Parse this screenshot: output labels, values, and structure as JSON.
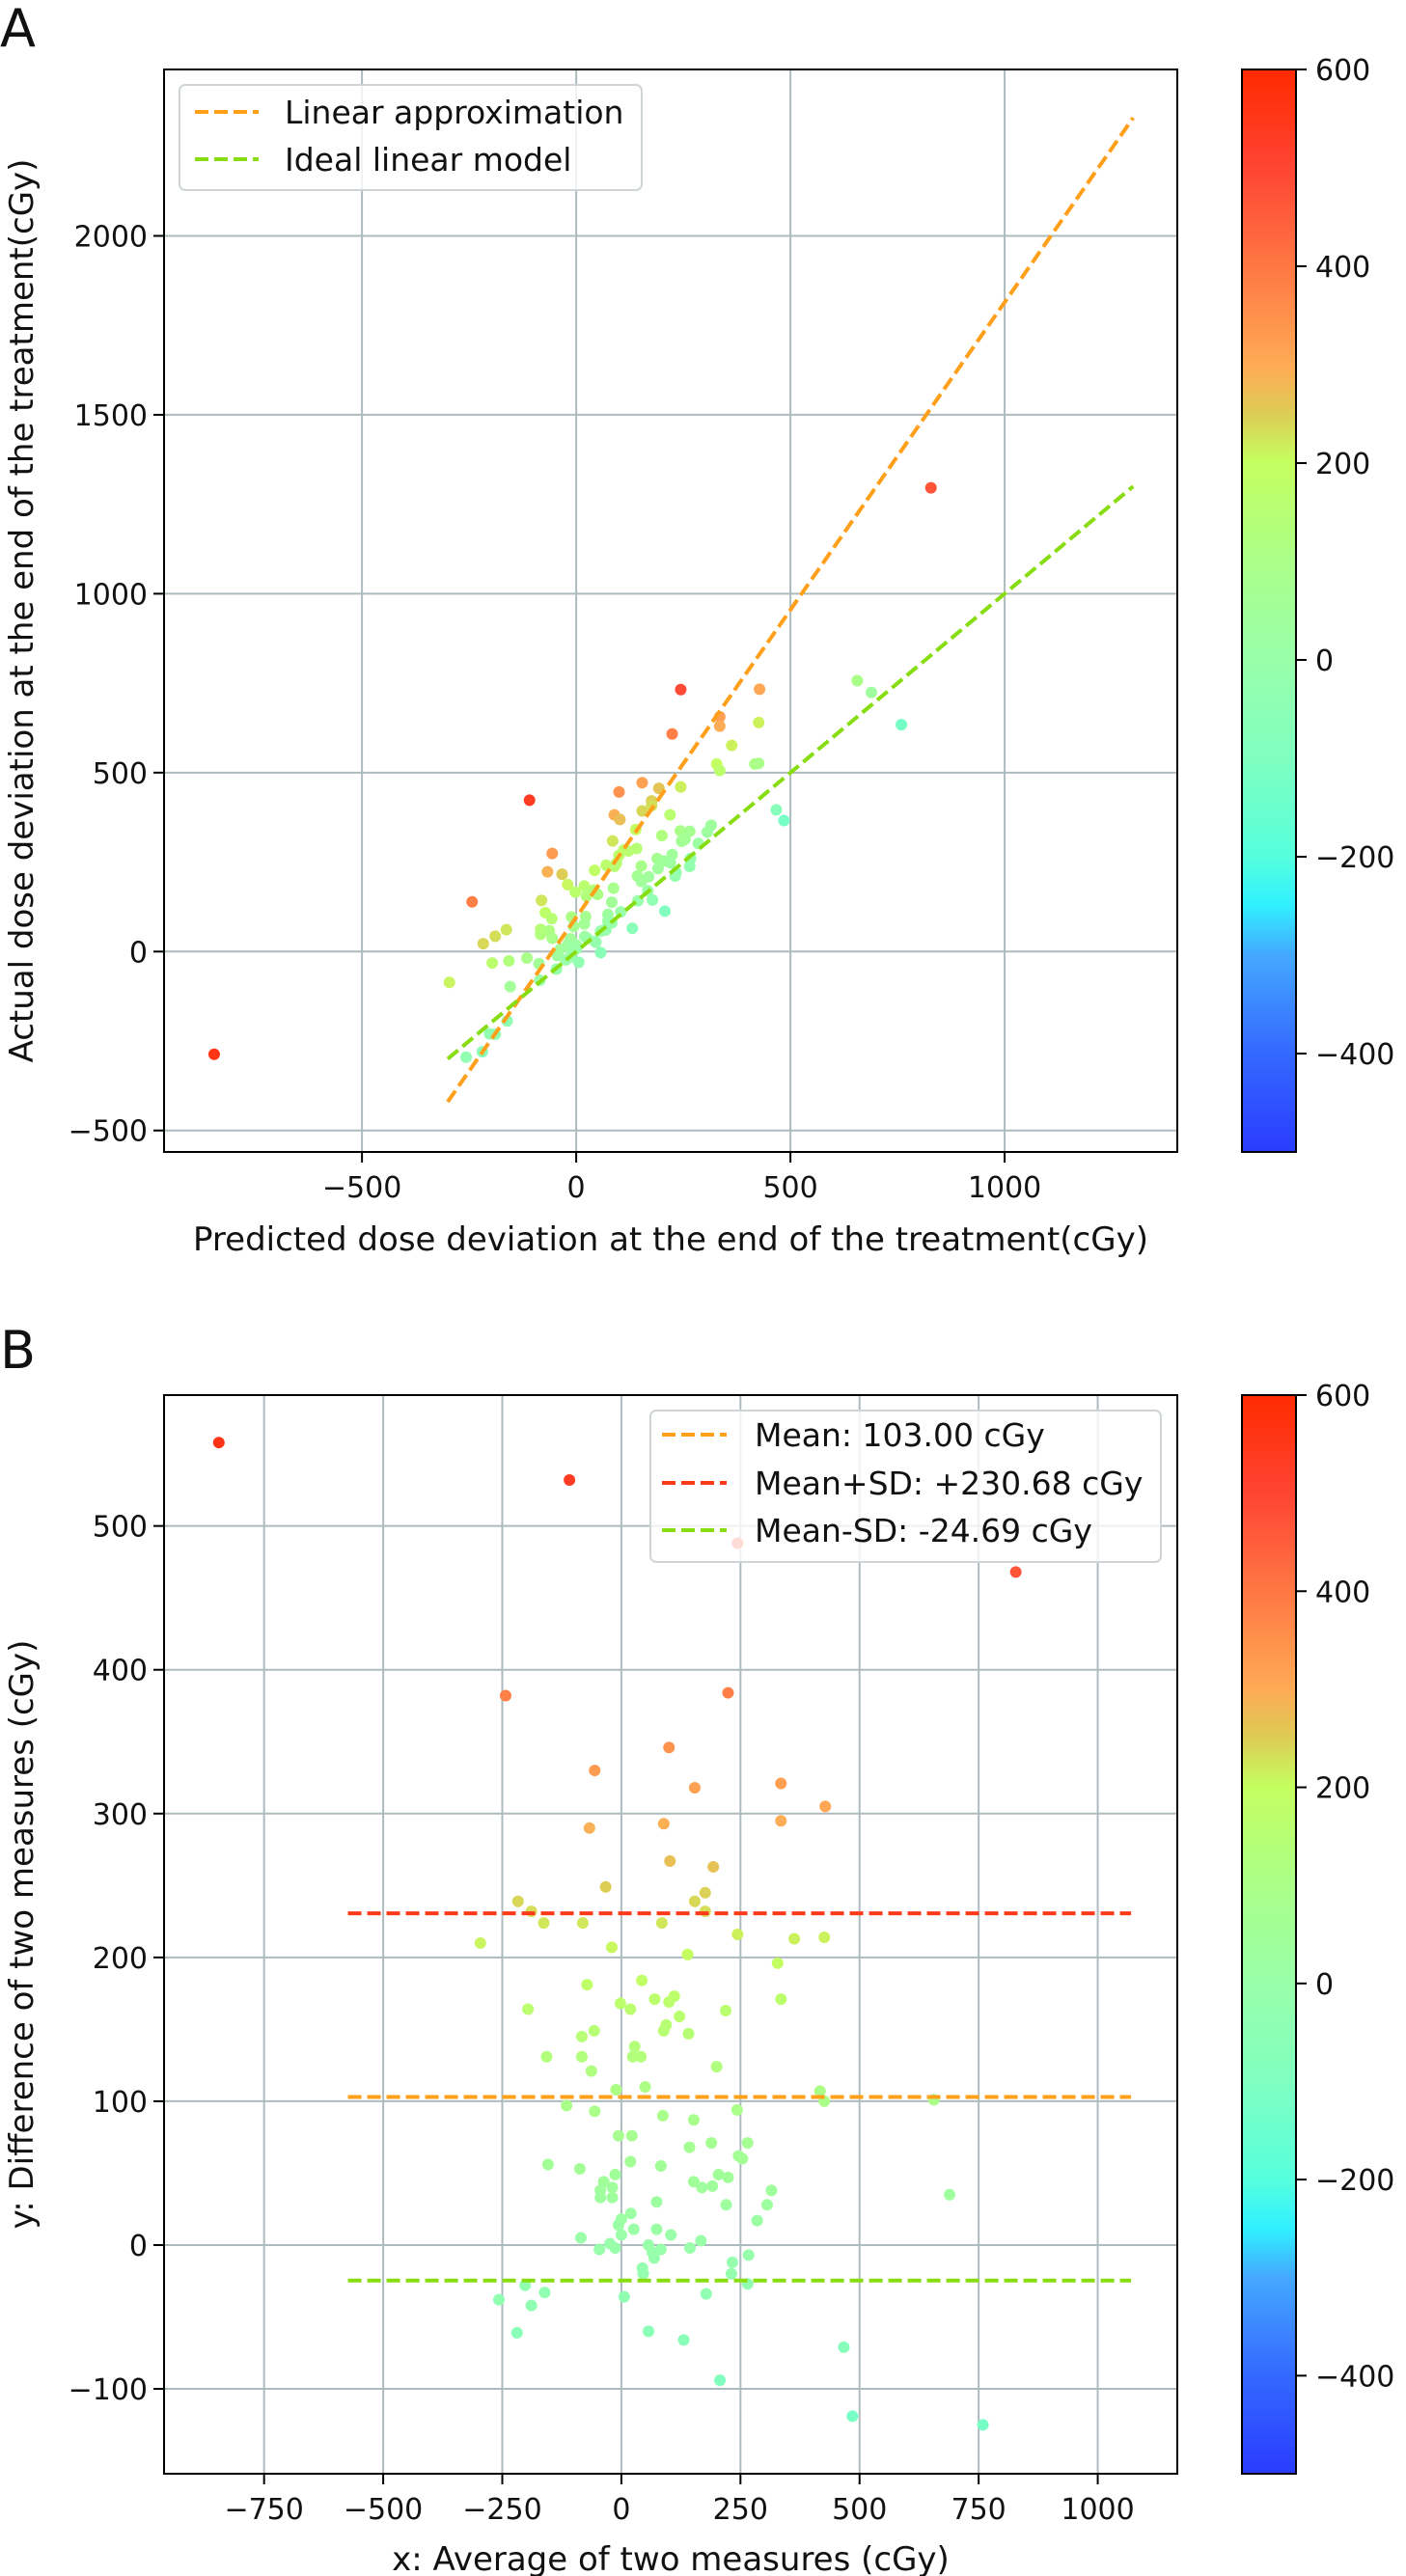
{
  "colorbar": {
    "min": -500,
    "max": 600,
    "ticks": [
      -400,
      -200,
      0,
      200,
      400,
      600
    ],
    "colors": [
      [
        -500,
        "#2a3cff"
      ],
      [
        -400,
        "#3468ff"
      ],
      [
        -300,
        "#45a8ff"
      ],
      [
        -250,
        "#30f0ff"
      ],
      [
        -200,
        "#55ffdd"
      ],
      [
        -100,
        "#80ffc0"
      ],
      [
        0,
        "#99ffaa"
      ],
      [
        100,
        "#aaff88"
      ],
      [
        200,
        "#c4ff60"
      ],
      [
        250,
        "#ddcc55"
      ],
      [
        300,
        "#ffaa55"
      ],
      [
        400,
        "#ff7744"
      ],
      [
        500,
        "#ff4433"
      ],
      [
        600,
        "#ff2a00"
      ]
    ]
  },
  "chart_data": [
    {
      "panel": "A",
      "type": "scatter",
      "xlabel": "Predicted dose deviation at the end of the treatment(cGy)",
      "ylabel": "Actual dose deviation at the end of the treatment(cGy)",
      "xlim": [
        -962,
        1403
      ],
      "ylim": [
        -560,
        2465
      ],
      "xticks": [
        -500,
        0,
        500,
        1000
      ],
      "yticks": [
        -500,
        0,
        500,
        1000,
        1500,
        2000
      ],
      "grid": true,
      "legend_position": "top-left",
      "lines": [
        {
          "name": "Linear approximation",
          "color": "#ff9f1a",
          "x": [
            -300,
            1300
          ],
          "y": [
            -420,
            2330
          ]
        },
        {
          "name": "Ideal linear model",
          "color": "#88dd11",
          "x": [
            -300,
            1300
          ],
          "y": [
            -300,
            1300
          ]
        }
      ],
      "points": [
        [
          -845,
          -287
        ],
        [
          -109,
          423
        ],
        [
          244,
          732
        ],
        [
          828,
          1296
        ],
        [
          -243,
          139
        ],
        [
          224,
          608
        ],
        [
          100,
          446
        ],
        [
          -56,
          274
        ],
        [
          154,
          472
        ],
        [
          335,
          656
        ],
        [
          428,
          733
        ],
        [
          -67,
          223
        ],
        [
          89,
          382
        ],
        [
          335,
          630
        ],
        [
          102,
          369
        ],
        [
          193,
          456
        ],
        [
          -33,
          216
        ],
        [
          176,
          421
        ],
        [
          -217,
          22
        ],
        [
          154,
          393
        ],
        [
          -189,
          43
        ],
        [
          176,
          408
        ],
        [
          -163,
          61
        ],
        [
          -81,
          143
        ],
        [
          85,
          309
        ],
        [
          -296,
          -86
        ],
        [
          244,
          460
        ],
        [
          363,
          576
        ],
        [
          426,
          640
        ],
        [
          -20,
          187
        ],
        [
          139,
          341
        ],
        [
          328,
          524
        ],
        [
          43,
          227
        ],
        [
          -72,
          109
        ],
        [
          111,
          284
        ],
        [
          -196,
          -32
        ],
        [
          -2,
          166
        ],
        [
          70,
          241
        ],
        [
          100,
          269
        ],
        [
          19,
          183
        ],
        [
          219,
          382
        ],
        [
          335,
          506
        ],
        [
          122,
          281
        ],
        [
          94,
          247
        ],
        [
          -57,
          92
        ],
        [
          89,
          238
        ],
        [
          -83,
          62
        ],
        [
          141,
          288
        ],
        [
          28,
          166
        ],
        [
          -157,
          -26
        ],
        [
          -83,
          48
        ],
        [
          41,
          172
        ],
        [
          24,
          155
        ],
        [
          200,
          324
        ],
        [
          -63,
          58
        ],
        [
          -11,
          97
        ],
        [
          50,
          160
        ],
        [
          417,
          524
        ],
        [
          426,
          526
        ],
        [
          656,
          757
        ],
        [
          -115,
          -18
        ],
        [
          -56,
          37
        ],
        [
          243,
          337
        ],
        [
          87,
          177
        ],
        [
          152,
          239
        ],
        [
          -6,
          70
        ],
        [
          22,
          98
        ],
        [
          265,
          336
        ],
        [
          189,
          260
        ],
        [
          143,
          211
        ],
        [
          254,
          314
        ],
        [
          246,
          308
        ],
        [
          -154,
          -98
        ],
        [
          19,
          77
        ],
        [
          83,
          138
        ],
        [
          -87,
          -34
        ],
        [
          204,
          253
        ],
        [
          224,
          271
        ],
        [
          -13,
          36
        ],
        [
          -37,
          7
        ],
        [
          152,
          196
        ],
        [
          -19,
          21
        ],
        [
          191,
          232
        ],
        [
          -44,
          -6
        ],
        [
          169,
          209
        ],
        [
          315,
          353
        ],
        [
          689,
          724
        ],
        [
          -44,
          -11
        ],
        [
          -19,
          14
        ],
        [
          306,
          334
        ],
        [
          220,
          248
        ],
        [
          74,
          104
        ],
        [
          20,
          42
        ],
        [
          0,
          18
        ],
        [
          -6,
          8
        ],
        [
          285,
          302
        ],
        [
          26,
          37
        ],
        [
          74,
          85
        ],
        [
          104,
          111
        ],
        [
          0,
          7
        ],
        [
          -85,
          -80
        ],
        [
          167,
          170
        ],
        [
          -24,
          -23
        ],
        [
          57,
          57
        ],
        [
          -13,
          -15
        ],
        [
          144,
          142
        ],
        [
          -46,
          -49
        ],
        [
          83,
          80
        ],
        [
          65,
          60
        ],
        [
          267,
          260
        ],
        [
          69,
          60
        ],
        [
          233,
          221
        ],
        [
          44,
          28
        ],
        [
          46,
          26
        ],
        [
          231,
          211
        ],
        [
          265,
          238
        ],
        [
          -202,
          -230
        ],
        [
          -161,
          -194
        ],
        [
          178,
          144
        ],
        [
          6,
          -30
        ],
        [
          -257,
          -295
        ],
        [
          -189,
          -231
        ],
        [
          -219,
          -280
        ],
        [
          57,
          -3
        ],
        [
          131,
          65
        ],
        [
          467,
          396
        ],
        [
          207,
          113
        ],
        [
          485,
          366
        ],
        [
          759,
          634
        ]
      ]
    },
    {
      "panel": "B",
      "type": "scatter",
      "xlabel": "x: Average of two measures (cGy)",
      "ylabel": "y: Difference of two measures (cGy)",
      "xlim": [
        -960,
        1167
      ],
      "ylim": [
        -159,
        591
      ],
      "xticks": [
        -750,
        -500,
        -250,
        0,
        250,
        500,
        750,
        1000
      ],
      "yticks": [
        -100,
        0,
        100,
        200,
        300,
        400,
        500
      ],
      "grid": true,
      "legend_position": "top-right",
      "hlines": [
        {
          "name": "Mean: 103.00 cGy",
          "color": "#ffa01a",
          "y": 103.0,
          "x": [
            -574,
            1070
          ]
        },
        {
          "name": "Mean+SD: +230.68 cGy",
          "color": "#ff3a1a",
          "y": 230.68,
          "x": [
            -574,
            1070
          ]
        },
        {
          "name": "Mean-SD: -24.69 cGy",
          "color": "#88dd11",
          "y": -24.69,
          "x": [
            -574,
            1070
          ]
        }
      ],
      "points": [
        [
          -845,
          558
        ],
        [
          -109,
          532
        ],
        [
          244,
          488
        ],
        [
          828,
          468
        ],
        [
          -243,
          382
        ],
        [
          224,
          384
        ],
        [
          100,
          346
        ],
        [
          -56,
          330
        ],
        [
          154,
          318
        ],
        [
          335,
          321
        ],
        [
          428,
          305
        ],
        [
          -67,
          290
        ],
        [
          89,
          293
        ],
        [
          335,
          295
        ],
        [
          102,
          267
        ],
        [
          193,
          263
        ],
        [
          -33,
          249
        ],
        [
          176,
          245
        ],
        [
          -217,
          239
        ],
        [
          154,
          239
        ],
        [
          -189,
          232
        ],
        [
          176,
          232
        ],
        [
          -163,
          224
        ],
        [
          -81,
          224
        ],
        [
          85,
          224
        ],
        [
          -296,
          210
        ],
        [
          244,
          216
        ],
        [
          363,
          213
        ],
        [
          426,
          214
        ],
        [
          -20,
          207
        ],
        [
          139,
          202
        ],
        [
          328,
          196
        ],
        [
          43,
          184
        ],
        [
          -72,
          181
        ],
        [
          111,
          173
        ],
        [
          -196,
          164
        ],
        [
          -2,
          168
        ],
        [
          70,
          171
        ],
        [
          100,
          169
        ],
        [
          19,
          164
        ],
        [
          219,
          163
        ],
        [
          335,
          171
        ],
        [
          122,
          159
        ],
        [
          94,
          153
        ],
        [
          -57,
          149
        ],
        [
          89,
          149
        ],
        [
          -83,
          145
        ],
        [
          141,
          147
        ],
        [
          28,
          138
        ],
        [
          -157,
          131
        ],
        [
          -83,
          131
        ],
        [
          41,
          131
        ],
        [
          24,
          131
        ],
        [
          200,
          124
        ],
        [
          -63,
          121
        ],
        [
          -11,
          108
        ],
        [
          50,
          110
        ],
        [
          417,
          107
        ],
        [
          426,
          100
        ],
        [
          656,
          101
        ],
        [
          -115,
          97
        ],
        [
          -56,
          93
        ],
        [
          243,
          94
        ],
        [
          87,
          90
        ],
        [
          152,
          87
        ],
        [
          -6,
          76
        ],
        [
          22,
          76
        ],
        [
          265,
          71
        ],
        [
          189,
          71
        ],
        [
          143,
          68
        ],
        [
          254,
          60
        ],
        [
          246,
          62
        ],
        [
          -154,
          56
        ],
        [
          19,
          58
        ],
        [
          83,
          55
        ],
        [
          -87,
          53
        ],
        [
          204,
          49
        ],
        [
          224,
          47
        ],
        [
          -13,
          49
        ],
        [
          -37,
          44
        ],
        [
          152,
          44
        ],
        [
          -19,
          40
        ],
        [
          191,
          41
        ],
        [
          -44,
          38
        ],
        [
          169,
          40
        ],
        [
          315,
          38
        ],
        [
          689,
          35
        ],
        [
          -44,
          33
        ],
        [
          -19,
          33
        ],
        [
          306,
          28
        ],
        [
          220,
          28
        ],
        [
          74,
          30
        ],
        [
          20,
          22
        ],
        [
          0,
          18
        ],
        [
          -6,
          14
        ],
        [
          285,
          17
        ],
        [
          26,
          11
        ],
        [
          74,
          11
        ],
        [
          104,
          7
        ],
        [
          0,
          7
        ],
        [
          -85,
          5
        ],
        [
          167,
          3
        ],
        [
          -24,
          1
        ],
        [
          57,
          0
        ],
        [
          -13,
          -2
        ],
        [
          144,
          -2
        ],
        [
          -46,
          -3
        ],
        [
          83,
          -3
        ],
        [
          65,
          -5
        ],
        [
          267,
          -7
        ],
        [
          69,
          -9
        ],
        [
          233,
          -12
        ],
        [
          44,
          -16
        ],
        [
          46,
          -20
        ],
        [
          231,
          -20
        ],
        [
          265,
          -27
        ],
        [
          -202,
          -28
        ],
        [
          -161,
          -33
        ],
        [
          178,
          -34
        ],
        [
          6,
          -36
        ],
        [
          -257,
          -38
        ],
        [
          -189,
          -42
        ],
        [
          -219,
          -61
        ],
        [
          57,
          -60
        ],
        [
          131,
          -66
        ],
        [
          467,
          -71
        ],
        [
          207,
          -94
        ],
        [
          485,
          -119
        ],
        [
          759,
          -125
        ]
      ]
    }
  ]
}
